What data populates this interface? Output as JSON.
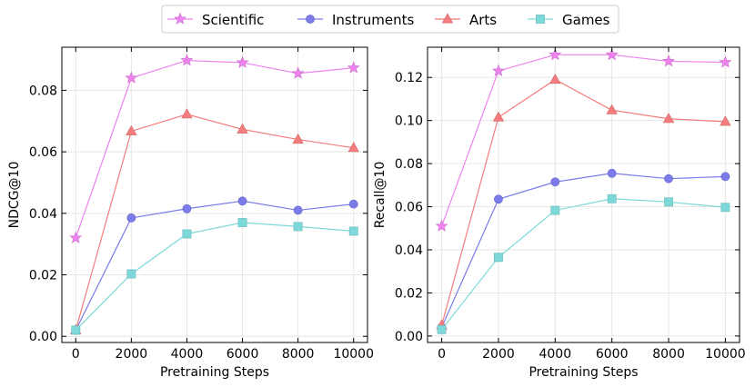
{
  "legend": {
    "placement": "top-center",
    "entries": [
      {
        "name": "Scientific",
        "color": "#ee82ee",
        "marker": "star"
      },
      {
        "name": "Instruments",
        "color": "#7b7bea",
        "marker": "circle"
      },
      {
        "name": "Arts",
        "color": "#f47c7c",
        "marker": "triangle"
      },
      {
        "name": "Games",
        "color": "#7dd9d9",
        "marker": "square"
      }
    ]
  },
  "chart_data": [
    {
      "type": "line",
      "title": "",
      "xlabel": "Pretraining Steps",
      "ylabel": "NDCG@10",
      "x": [
        0,
        2000,
        4000,
        6000,
        8000,
        10000
      ],
      "xticks": [
        "0",
        "2000",
        "4000",
        "6000",
        "8000",
        "10000"
      ],
      "xlim": [
        -500,
        10500
      ],
      "ylim": [
        -0.002,
        0.094
      ],
      "yticks": [
        0.0,
        0.02,
        0.04,
        0.06,
        0.08
      ],
      "ytick_labels": [
        "0.00",
        "0.02",
        "0.04",
        "0.06",
        "0.08"
      ],
      "grid": true,
      "series": [
        {
          "name": "Scientific",
          "values": [
            0.032,
            0.084,
            0.0897,
            0.089,
            0.0855,
            0.0873
          ]
        },
        {
          "name": "Instruments",
          "values": [
            0.002,
            0.0385,
            0.0415,
            0.044,
            0.041,
            0.043
          ]
        },
        {
          "name": "Arts",
          "values": [
            0.002,
            0.0667,
            0.0722,
            0.0673,
            0.064,
            0.0613
          ]
        },
        {
          "name": "Games",
          "values": [
            0.002,
            0.0203,
            0.0333,
            0.037,
            0.0357,
            0.0342
          ]
        }
      ]
    },
    {
      "type": "line",
      "title": "",
      "xlabel": "Pretraining Steps",
      "ylabel": "Recall@10",
      "x": [
        0,
        2000,
        4000,
        6000,
        8000,
        10000
      ],
      "xticks": [
        "0",
        "2000",
        "4000",
        "6000",
        "8000",
        "10000"
      ],
      "xlim": [
        -500,
        10500
      ],
      "ylim": [
        -0.003,
        0.134
      ],
      "yticks": [
        0.0,
        0.02,
        0.04,
        0.06,
        0.08,
        0.1,
        0.12
      ],
      "ytick_labels": [
        "0.00",
        "0.02",
        "0.04",
        "0.06",
        "0.08",
        "0.10",
        "0.12"
      ],
      "grid": true,
      "series": [
        {
          "name": "Scientific",
          "values": [
            0.051,
            0.123,
            0.1305,
            0.1305,
            0.1275,
            0.127
          ]
        },
        {
          "name": "Instruments",
          "values": [
            0.004,
            0.0635,
            0.0715,
            0.0755,
            0.073,
            0.074
          ]
        },
        {
          "name": "Arts",
          "values": [
            0.005,
            0.1015,
            0.119,
            0.1048,
            0.1008,
            0.0995
          ]
        },
        {
          "name": "Games",
          "values": [
            0.003,
            0.0365,
            0.0583,
            0.0637,
            0.0622,
            0.0597
          ]
        }
      ]
    }
  ]
}
